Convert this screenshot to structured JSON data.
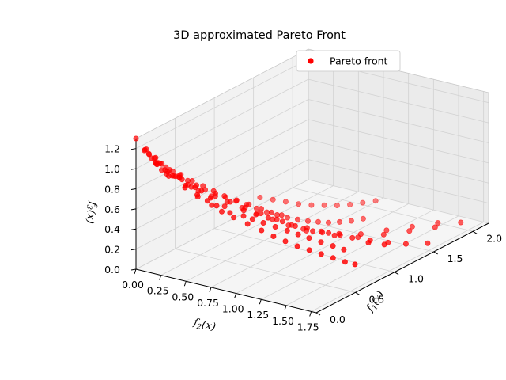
{
  "chart_data": {
    "type": "scatter",
    "projection": "3d",
    "title": "3D approximated Pareto Front",
    "xlabel": "f_1(x)",
    "ylabel": "f_2(x)",
    "zlabel": "f_3(x)",
    "xlim": [
      0,
      2.2
    ],
    "ylim": [
      0,
      1.8
    ],
    "zlim": [
      0,
      1.3
    ],
    "xticks": [
      "0.0",
      "0.5",
      "1.0",
      "1.5",
      "2.0"
    ],
    "xtick_values": [
      0,
      0.5,
      1.0,
      1.5,
      2.0
    ],
    "yticks": [
      "0.00",
      "0.25",
      "0.50",
      "0.75",
      "1.00",
      "1.25",
      "1.50",
      "1.75"
    ],
    "ytick_values": [
      0,
      0.25,
      0.5,
      0.75,
      1.0,
      1.25,
      1.5,
      1.75
    ],
    "zticks": [
      "0.0",
      "0.2",
      "0.4",
      "0.6",
      "0.8",
      "1.0",
      "1.2"
    ],
    "ztick_values": [
      0,
      0.2,
      0.4,
      0.6,
      0.8,
      1.0,
      1.2
    ],
    "grid": true,
    "legend": {
      "position": "upper right",
      "entries": [
        "Pareto front"
      ]
    },
    "series": [
      {
        "name": "Pareto front",
        "color": "#ff0000",
        "marker": "circle",
        "points": [
          [
            0.0,
            0.0,
            1.3
          ],
          [
            0.05,
            0.05,
            1.18
          ],
          [
            0.04,
            0.1,
            1.15
          ],
          [
            0.06,
            0.15,
            1.12
          ],
          [
            0.08,
            0.12,
            1.1
          ],
          [
            0.05,
            0.2,
            1.08
          ],
          [
            0.1,
            0.18,
            1.05
          ],
          [
            0.12,
            0.1,
            1.03
          ],
          [
            0.08,
            0.25,
            1.0
          ],
          [
            0.15,
            0.22,
            0.98
          ],
          [
            0.1,
            0.3,
            0.96
          ],
          [
            0.18,
            0.15,
            0.95
          ],
          [
            0.14,
            0.35,
            0.92
          ],
          [
            0.2,
            0.28,
            0.9
          ],
          [
            0.12,
            0.4,
            0.88
          ],
          [
            0.25,
            0.2,
            0.87
          ],
          [
            0.18,
            0.45,
            0.85
          ],
          [
            0.22,
            0.38,
            0.82
          ],
          [
            0.28,
            0.3,
            0.8
          ],
          [
            0.15,
            0.5,
            0.78
          ],
          [
            0.3,
            0.42,
            0.76
          ],
          [
            0.25,
            0.55,
            0.74
          ],
          [
            0.35,
            0.35,
            0.72
          ],
          [
            0.2,
            0.6,
            0.7
          ],
          [
            0.4,
            0.48,
            0.68
          ],
          [
            0.3,
            0.65,
            0.66
          ],
          [
            0.45,
            0.4,
            0.64
          ],
          [
            0.28,
            0.72,
            0.62
          ],
          [
            0.5,
            0.55,
            0.6
          ],
          [
            0.35,
            0.8,
            0.58
          ],
          [
            0.55,
            0.48,
            0.56
          ],
          [
            0.4,
            0.85,
            0.54
          ],
          [
            0.6,
            0.62,
            0.52
          ],
          [
            0.45,
            0.92,
            0.5
          ],
          [
            0.65,
            0.55,
            0.48
          ],
          [
            0.5,
            1.0,
            0.46
          ],
          [
            0.7,
            0.7,
            0.44
          ],
          [
            0.55,
            1.08,
            0.42
          ],
          [
            0.75,
            0.62,
            0.4
          ],
          [
            0.6,
            1.15,
            0.38
          ],
          [
            0.8,
            0.78,
            0.36
          ],
          [
            0.65,
            1.22,
            0.34
          ],
          [
            0.85,
            0.7,
            0.32
          ],
          [
            0.7,
            1.3,
            0.3
          ],
          [
            0.9,
            0.85,
            0.28
          ],
          [
            0.75,
            1.38,
            0.26
          ],
          [
            0.95,
            0.78,
            0.24
          ],
          [
            0.8,
            1.45,
            0.22
          ],
          [
            1.0,
            0.92,
            0.2
          ],
          [
            1.05,
            0.85,
            0.18
          ],
          [
            1.1,
            1.0,
            0.16
          ],
          [
            1.15,
            0.95,
            0.14
          ],
          [
            1.2,
            1.1,
            0.12
          ],
          [
            1.25,
            1.05,
            0.1
          ],
          [
            1.3,
            1.2,
            0.08
          ],
          [
            1.4,
            1.15,
            0.06
          ],
          [
            1.5,
            1.3,
            0.05
          ],
          [
            1.6,
            1.25,
            0.04
          ],
          [
            1.7,
            1.4,
            0.03
          ],
          [
            1.8,
            1.35,
            0.02
          ],
          [
            1.9,
            1.5,
            0.01
          ],
          [
            2.0,
            1.45,
            0.0
          ],
          [
            2.1,
            1.6,
            0.0
          ],
          [
            0.1,
            0.05,
            1.12
          ],
          [
            0.03,
            0.08,
            1.2
          ],
          [
            0.07,
            0.03,
            1.16
          ],
          [
            0.12,
            0.06,
            1.07
          ],
          [
            0.16,
            0.08,
            1.0
          ],
          [
            0.09,
            0.14,
            1.04
          ],
          [
            0.02,
            0.18,
            1.1
          ],
          [
            0.2,
            0.1,
            0.93
          ],
          [
            0.24,
            0.12,
            0.88
          ],
          [
            0.06,
            0.28,
            0.97
          ],
          [
            0.13,
            0.26,
            0.94
          ],
          [
            0.32,
            0.18,
            0.83
          ],
          [
            0.38,
            0.22,
            0.78
          ],
          [
            0.44,
            0.26,
            0.72
          ],
          [
            0.5,
            0.3,
            0.66
          ],
          [
            0.58,
            0.34,
            0.6
          ],
          [
            0.66,
            0.38,
            0.54
          ],
          [
            0.74,
            0.42,
            0.48
          ],
          [
            0.82,
            0.46,
            0.42
          ],
          [
            0.9,
            0.5,
            0.36
          ],
          [
            0.98,
            0.54,
            0.3
          ],
          [
            1.06,
            0.58,
            0.25
          ],
          [
            1.14,
            0.62,
            0.2
          ],
          [
            1.22,
            0.66,
            0.16
          ],
          [
            1.3,
            0.7,
            0.12
          ],
          [
            1.38,
            0.74,
            0.09
          ],
          [
            1.46,
            0.78,
            0.06
          ],
          [
            1.55,
            0.82,
            0.04
          ],
          [
            1.65,
            0.86,
            0.02
          ],
          [
            1.75,
            0.9,
            0.01
          ],
          [
            0.2,
            0.7,
            0.66
          ],
          [
            0.25,
            0.78,
            0.6
          ],
          [
            0.3,
            0.88,
            0.54
          ],
          [
            0.35,
            0.98,
            0.48
          ],
          [
            0.4,
            1.06,
            0.42
          ],
          [
            0.45,
            1.14,
            0.37
          ],
          [
            0.5,
            1.22,
            0.32
          ],
          [
            0.55,
            1.3,
            0.28
          ],
          [
            0.6,
            1.38,
            0.24
          ],
          [
            0.65,
            1.46,
            0.2
          ],
          [
            0.7,
            1.54,
            0.16
          ],
          [
            0.75,
            1.6,
            0.13
          ],
          [
            0.05,
            0.45,
            0.9
          ],
          [
            0.08,
            0.55,
            0.84
          ],
          [
            0.12,
            0.62,
            0.78
          ],
          [
            0.16,
            0.68,
            0.73
          ],
          [
            1.2,
            0.3,
            0.3
          ],
          [
            1.3,
            0.35,
            0.25
          ],
          [
            1.4,
            0.4,
            0.2
          ],
          [
            1.5,
            0.45,
            0.15
          ],
          [
            1.6,
            0.5,
            0.11
          ],
          [
            1.7,
            0.55,
            0.08
          ],
          [
            1.8,
            0.6,
            0.05
          ],
          [
            1.9,
            0.65,
            0.03
          ],
          [
            2.0,
            0.7,
            0.02
          ],
          [
            2.1,
            0.75,
            0.01
          ],
          [
            1.0,
            1.2,
            0.22
          ],
          [
            1.1,
            1.3,
            0.18
          ],
          [
            1.2,
            1.4,
            0.14
          ],
          [
            1.3,
            1.5,
            0.1
          ],
          [
            1.4,
            1.6,
            0.07
          ],
          [
            1.55,
            1.7,
            0.04
          ],
          [
            0.22,
            0.05,
            0.98
          ],
          [
            0.28,
            0.08,
            0.92
          ],
          [
            0.34,
            0.1,
            0.86
          ],
          [
            0.42,
            0.12,
            0.8
          ],
          [
            0.85,
            1.1,
            0.3
          ],
          [
            0.95,
            1.18,
            0.26
          ],
          [
            1.05,
            1.5,
            0.2
          ],
          [
            1.15,
            1.58,
            0.16
          ],
          [
            0.48,
            0.7,
            0.56
          ],
          [
            0.56,
            0.76,
            0.5
          ],
          [
            0.64,
            0.82,
            0.45
          ],
          [
            0.72,
            0.9,
            0.4
          ],
          [
            0.78,
            0.98,
            0.35
          ],
          [
            0.88,
            1.02,
            0.3
          ],
          [
            0.3,
            0.2,
            0.86
          ],
          [
            0.36,
            0.28,
            0.8
          ],
          [
            0.42,
            0.34,
            0.74
          ],
          [
            0.48,
            0.4,
            0.68
          ],
          [
            0.54,
            0.46,
            0.62
          ],
          [
            0.62,
            0.52,
            0.56
          ],
          [
            0.7,
            0.58,
            0.5
          ],
          [
            0.78,
            0.64,
            0.44
          ],
          [
            0.86,
            0.68,
            0.38
          ],
          [
            0.94,
            0.72,
            0.33
          ]
        ]
      }
    ]
  }
}
